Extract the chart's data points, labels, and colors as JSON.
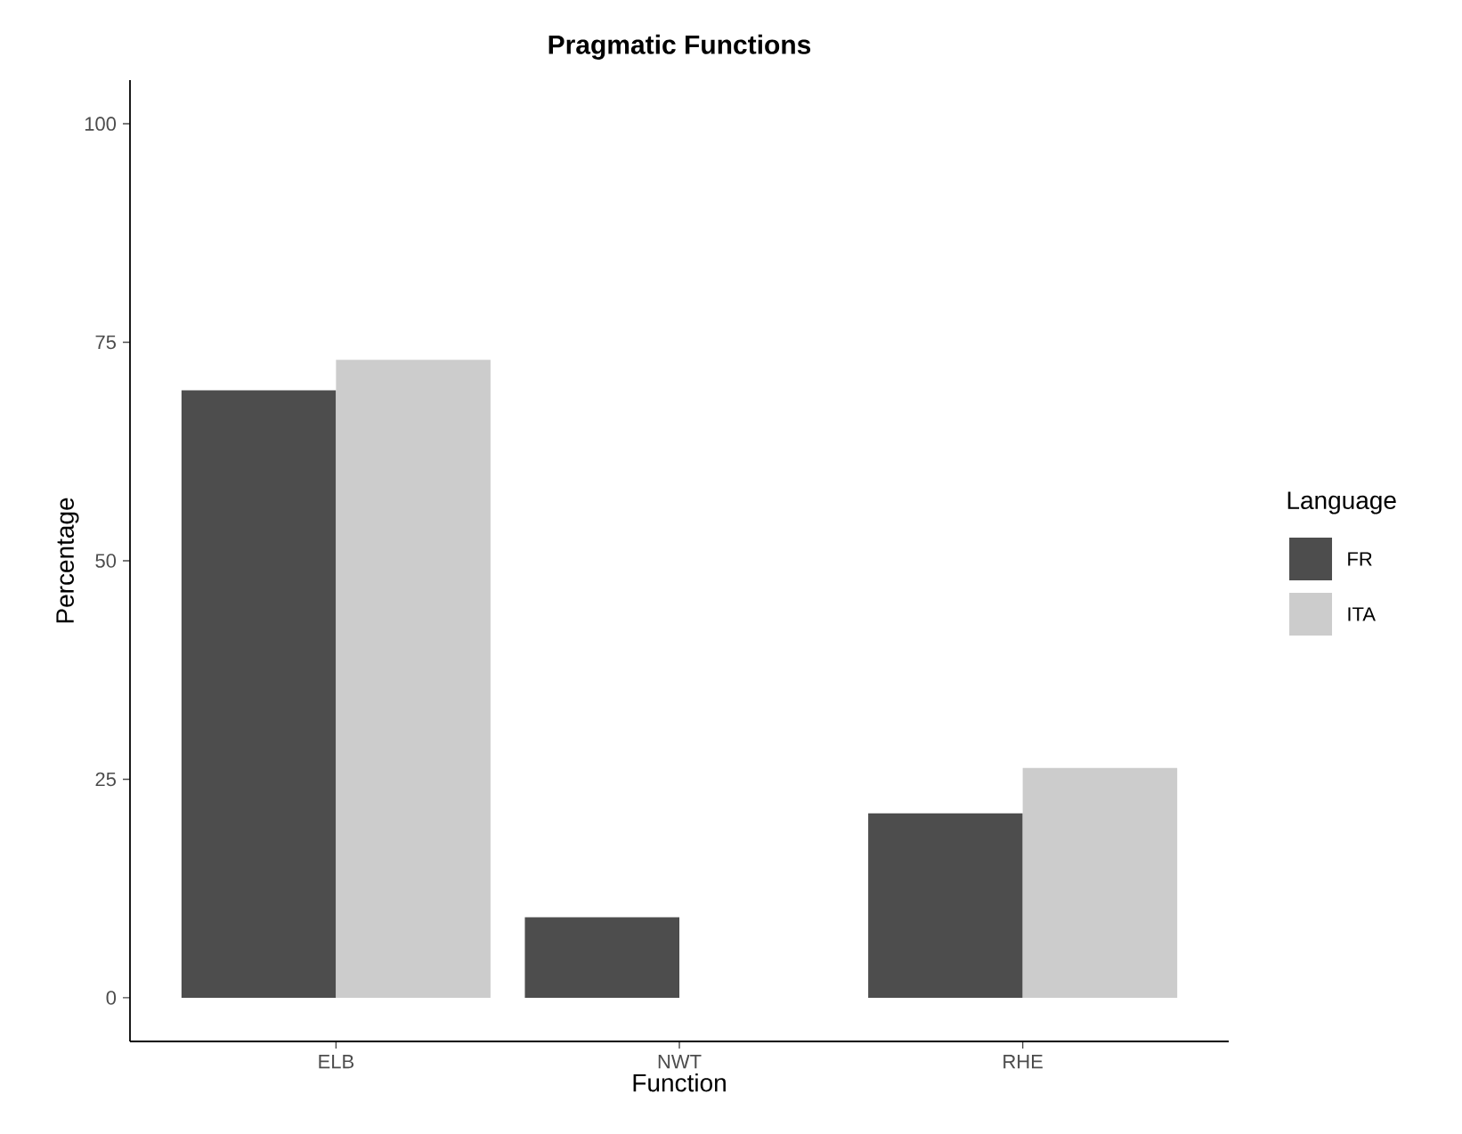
{
  "chart_data": {
    "type": "bar",
    "title": "Pragmatic Functions",
    "xlabel": "Function",
    "ylabel": "Percentage",
    "legend_title": "Language",
    "categories": [
      "ELB",
      "NWT",
      "RHE"
    ],
    "series": [
      {
        "name": "FR",
        "color": "#4d4d4d",
        "values": [
          69.5,
          9.2,
          21.1
        ]
      },
      {
        "name": "ITA",
        "color": "#cccccc",
        "values": [
          73,
          null,
          26.3
        ]
      }
    ],
    "ylim": [
      -5,
      105
    ],
    "yticks": [
      0,
      25,
      50,
      75,
      100
    ],
    "legend": "right"
  }
}
